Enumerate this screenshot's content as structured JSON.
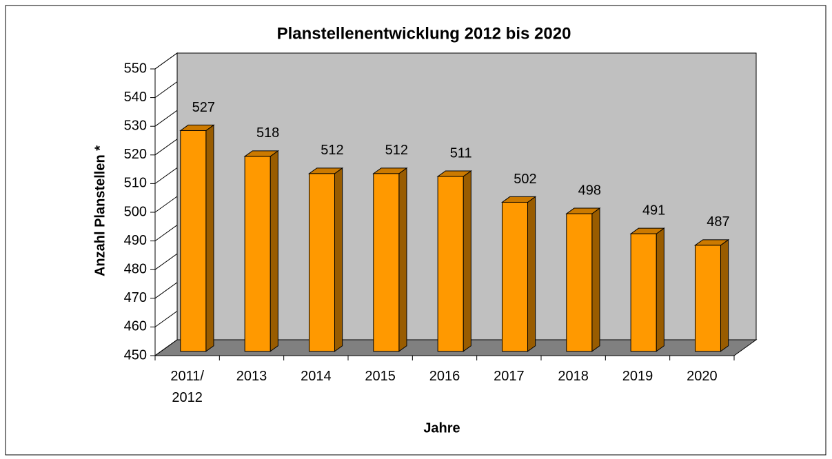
{
  "chart_data": {
    "type": "bar3d",
    "title": "Planstellenentwicklung 2012 bis 2020",
    "x_label": "Jahre",
    "y_label": "Anzahl Planstellen *",
    "categories": [
      "2011/\n2012",
      "2013",
      "2014",
      "2015",
      "2016",
      "2017",
      "2018",
      "2019",
      "2020"
    ],
    "values": [
      527,
      518,
      512,
      512,
      511,
      502,
      498,
      491,
      487
    ],
    "color": "#ff9900",
    "ylim": [
      450,
      550
    ],
    "yticks": [
      450,
      460,
      470,
      480,
      490,
      500,
      510,
      520,
      530,
      540,
      550
    ]
  }
}
